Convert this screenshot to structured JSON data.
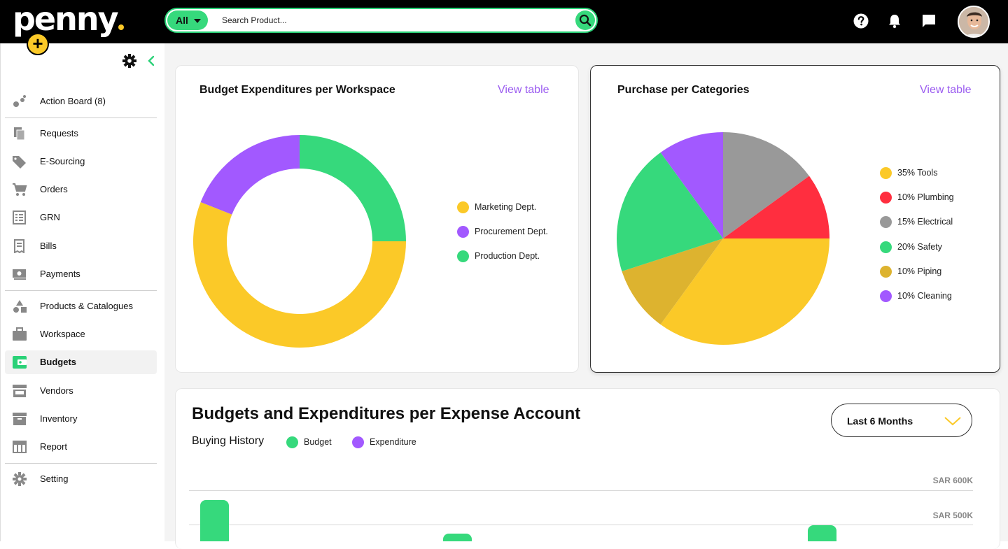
{
  "app": {
    "logo": "penny"
  },
  "search": {
    "scope": "All",
    "placeholder": "Search Product..."
  },
  "sidebar": {
    "items": [
      {
        "label": "Action Board (8)",
        "icon": "action-board-icon"
      },
      {
        "label": "Requests",
        "icon": "requests-icon"
      },
      {
        "label": "E-Sourcing",
        "icon": "tag-icon"
      },
      {
        "label": "Orders",
        "icon": "cart-icon"
      },
      {
        "label": "GRN",
        "icon": "grn-icon"
      },
      {
        "label": "Bills",
        "icon": "bills-icon"
      },
      {
        "label": "Payments",
        "icon": "payments-icon"
      },
      {
        "label": "Products & Catalogues",
        "icon": "shapes-icon"
      },
      {
        "label": "Workspace",
        "icon": "briefcase-icon"
      },
      {
        "label": "Budgets",
        "icon": "wallet-icon",
        "active": true
      },
      {
        "label": "Vendors",
        "icon": "store-icon"
      },
      {
        "label": "Inventory",
        "icon": "archive-icon"
      },
      {
        "label": "Report",
        "icon": "table-icon"
      },
      {
        "label": "Setting",
        "icon": "gear-icon"
      }
    ]
  },
  "budget_card": {
    "title": "Budget Expenditures per Workspace",
    "link": "View table",
    "legend": [
      "Marketing Dept.",
      "Procurement Dept.",
      "Production Dept."
    ]
  },
  "category_card": {
    "title": "Purchase per Categories",
    "link": "View table",
    "legend": [
      "35% Tools",
      "10% Plumbing",
      "15% Electrical",
      "20% Safety",
      "10% Piping",
      "10% Cleaning"
    ]
  },
  "expense": {
    "title": "Budgets and Expenditures per Expense Account",
    "subtitle": "Buying History",
    "legend": [
      "Budget",
      "Expenditure"
    ],
    "period": "Last 6 Months",
    "axis": [
      "SAR 600K",
      "SAR 500K"
    ]
  },
  "colors": {
    "yellow": "#FBC928",
    "green": "#36D97C",
    "purple": "#A259FF",
    "red": "#FF2E3F",
    "gray": "#999999",
    "ochre": "#DDB32F"
  },
  "chart_data": [
    {
      "type": "pie",
      "title": "Budget Expenditures per Workspace",
      "donut": true,
      "labels": [
        "Marketing Dept.",
        "Procurement Dept.",
        "Production Dept."
      ],
      "values": [
        56,
        19,
        25
      ]
    },
    {
      "type": "pie",
      "title": "Purchase per Categories",
      "labels": [
        "Tools",
        "Plumbing",
        "Electrical",
        "Safety",
        "Piping",
        "Cleaning"
      ],
      "values": [
        35,
        10,
        15,
        20,
        10,
        10
      ]
    }
  ]
}
